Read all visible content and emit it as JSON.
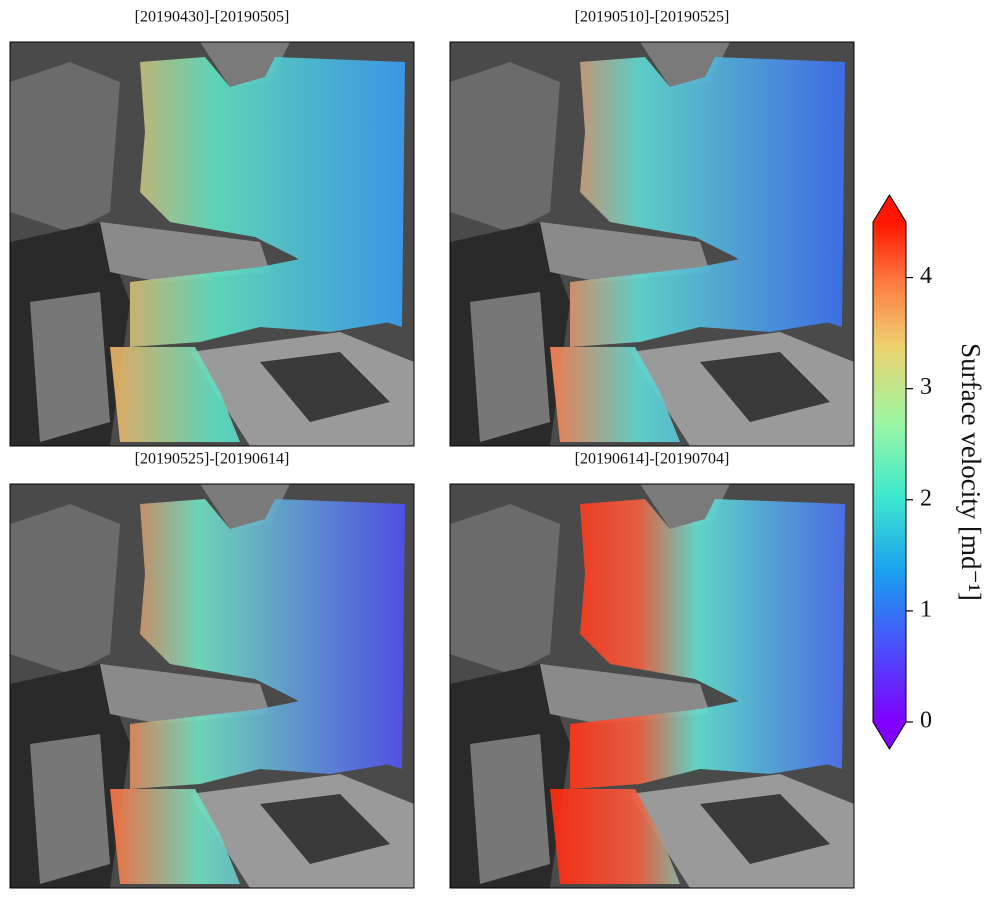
{
  "panels": [
    {
      "title": "[20190430]-[20190505]"
    },
    {
      "title": "[20190510]-[20190525]"
    },
    {
      "title": "[20190525]-[20190614]"
    },
    {
      "title": "[20190614]-[20190704]"
    }
  ],
  "colorbar": {
    "label": "Surface velocity [md⁻¹]",
    "lim": [
      0,
      4.5
    ],
    "ticks": [
      0,
      1,
      2,
      3,
      4
    ],
    "extend": "both"
  }
}
